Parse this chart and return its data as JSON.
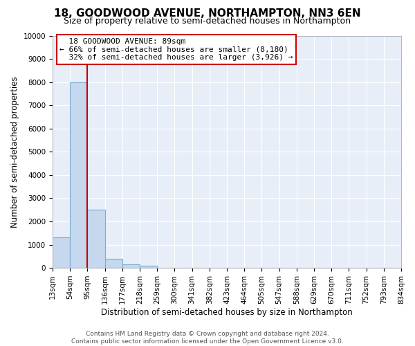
{
  "title": "18, GOODWOOD AVENUE, NORTHAMPTON, NN3 6EN",
  "subtitle": "Size of property relative to semi-detached houses in Northampton",
  "xlabel": "Distribution of semi-detached houses by size in Northampton",
  "ylabel": "Number of semi-detached properties",
  "bin_labels": [
    "13sqm",
    "54sqm",
    "95sqm",
    "136sqm",
    "177sqm",
    "218sqm",
    "259sqm",
    "300sqm",
    "341sqm",
    "382sqm",
    "423sqm",
    "464sqm",
    "505sqm",
    "547sqm",
    "588sqm",
    "629sqm",
    "670sqm",
    "711sqm",
    "752sqm",
    "793sqm",
    "834sqm"
  ],
  "bar_heights": [
    1300,
    8000,
    2500,
    400,
    150,
    100,
    0,
    0,
    0,
    0,
    0,
    0,
    0,
    0,
    0,
    0,
    0,
    0,
    0,
    0
  ],
  "bar_color": "#c5d8ee",
  "bar_edge_color": "#7aadd4",
  "property_line_x": 95,
  "property_line_label": "18 GOODWOOD AVENUE: 89sqm",
  "pct_smaller": 66,
  "num_smaller": 8180,
  "pct_larger": 32,
  "num_larger": 3926,
  "annotation_box_edge_color": "#cc0000",
  "line_color": "#cc0000",
  "ylim": [
    0,
    10000
  ],
  "yticks": [
    0,
    1000,
    2000,
    3000,
    4000,
    5000,
    6000,
    7000,
    8000,
    9000,
    10000
  ],
  "footer_line1": "Contains HM Land Registry data © Crown copyright and database right 2024.",
  "footer_line2": "Contains public sector information licensed under the Open Government Licence v3.0.",
  "bg_color": "#ffffff",
  "plot_bg_color": "#e8eef8",
  "title_fontsize": 11,
  "subtitle_fontsize": 9,
  "axis_label_fontsize": 8.5,
  "tick_fontsize": 7.5,
  "footer_fontsize": 6.5,
  "grid_color": "#ffffff",
  "spine_color": "#b0b8c8"
}
